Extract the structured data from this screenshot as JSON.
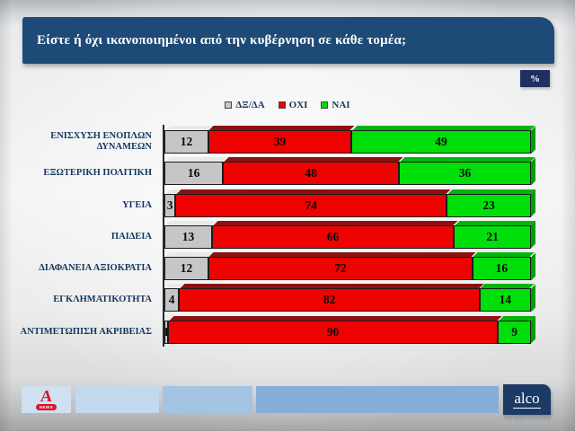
{
  "slide": {
    "title": "Είστε ή όχι ικανοποιημένοι από την κυβέρνηση σε κάθε τομέα;",
    "unit_badge": "%"
  },
  "chart_data": {
    "type": "bar",
    "orientation": "horizontal-stacked",
    "title": "Είστε ή όχι ικανοποιημένοι από την κυβέρνηση σε κάθε τομέα;",
    "value_unit": "%",
    "xlim": [
      0,
      100
    ],
    "grid": false,
    "legend_position": "top-center",
    "data_labels": true,
    "categories": [
      "ΕΝΙΣΧΥΣΗ ΕΝΟΠΛΩΝ ΔΥΝΑΜΕΩΝ",
      "ΕΞΩΤΕΡΙΚΗ ΠΟΛΙΤΙΚΗ",
      "ΥΓΕΙΑ",
      "ΠΑΙΔΕΙΑ",
      "ΔΙΑΦΑΝΕΙΑ ΑΞΙΟΚΡΑΤΙΑ",
      "ΕΓΚΛΗΜΑΤΙΚΟΤΗΤΑ",
      "ΑΝΤΙΜΕΤΩΠΙΣΗ ΑΚΡΙΒΕΙΑΣ"
    ],
    "series": [
      {
        "name": "ΔΞ/ΔΑ",
        "color": "#c6c6c6",
        "top_color": "#e9e9e9",
        "side_color": "#8f8f8f",
        "values": [
          12,
          16,
          3,
          13,
          12,
          4,
          1
        ]
      },
      {
        "name": "ΟΧΙ",
        "color": "#ee0202",
        "top_color": "#8e1010",
        "side_color": "#9a0b0b",
        "values": [
          39,
          48,
          74,
          66,
          72,
          82,
          90
        ]
      },
      {
        "name": "ΝΑΙ",
        "color": "#00df0a",
        "top_color": "#00b608",
        "side_color": "#009e08",
        "values": [
          49,
          36,
          23,
          21,
          16,
          14,
          9
        ]
      }
    ]
  },
  "footer": {
    "alpha_logo": {
      "letter": "A",
      "sub": "NEWS"
    },
    "alco_logo": {
      "text": "alco",
      "tagline": "The pulse of society"
    }
  },
  "colors": {
    "header_bg": "#1d4a77",
    "badge_bg": "#1e3060",
    "title_text": "#ffffff",
    "label_text": "#14365e",
    "legend_text": "#16375f",
    "bar_border": "#1c1c1c",
    "footer_band_1": "#cfe0f0",
    "footer_band_2": "#c3d8ec",
    "footer_band_3": "#a3c4e2",
    "footer_band_4": "#86afd7",
    "alco_bg": "#1c3a66",
    "alpha_red": "#d9112b",
    "tagline_text": "#8f9499"
  }
}
